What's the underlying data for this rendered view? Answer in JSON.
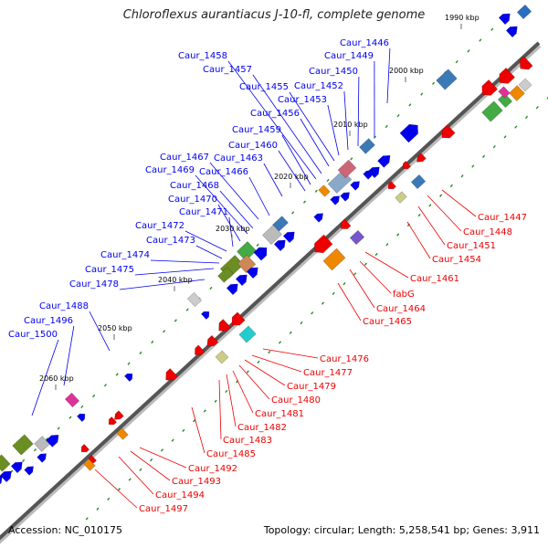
{
  "title": "Chloroflexus aurantiacus J-10-fl, complete genome",
  "accession_label": "Accession: NC_010175",
  "summary_label": "Topology: circular; Length: 5,258,541 bp; Genes: 3,911",
  "colors": {
    "forward_genes": "#0000ee",
    "reverse_genes": "#ee0000",
    "backbone": "#555555",
    "tick_minor": "#228b22"
  },
  "ticks": [
    "1990 kbp",
    "2000 kbp",
    "2010 kbp",
    "2020 kbp",
    "2030 kbp",
    "2040 kbp",
    "2050 kbp",
    "2060 kbp"
  ],
  "forward_labels": [
    "Caur_1446",
    "Caur_1449",
    "Caur_1450",
    "Caur_1452",
    "Caur_1453",
    "Caur_1455",
    "Caur_1456",
    "Caur_1457",
    "Caur_1458",
    "Caur_1459",
    "Caur_1460",
    "Caur_1463",
    "Caur_1466",
    "Caur_1467",
    "Caur_1468",
    "Caur_1469",
    "Caur_1470",
    "Caur_1471",
    "Caur_1472",
    "Caur_1473",
    "Caur_1474",
    "Caur_1475",
    "Caur_1478",
    "Caur_1488",
    "Caur_1496",
    "Caur_1500"
  ],
  "reverse_labels": [
    "Caur_1447",
    "Caur_1448",
    "Caur_1451",
    "Caur_1454",
    "Caur_1461",
    "fabG",
    "Caur_1464",
    "Caur_1465",
    "Caur_1476",
    "Caur_1477",
    "Caur_1479",
    "Caur_1480",
    "Caur_1481",
    "Caur_1482",
    "Caur_1483",
    "Caur_1485",
    "Caur_1492",
    "Caur_1493",
    "Caur_1494",
    "Caur_1497"
  ]
}
